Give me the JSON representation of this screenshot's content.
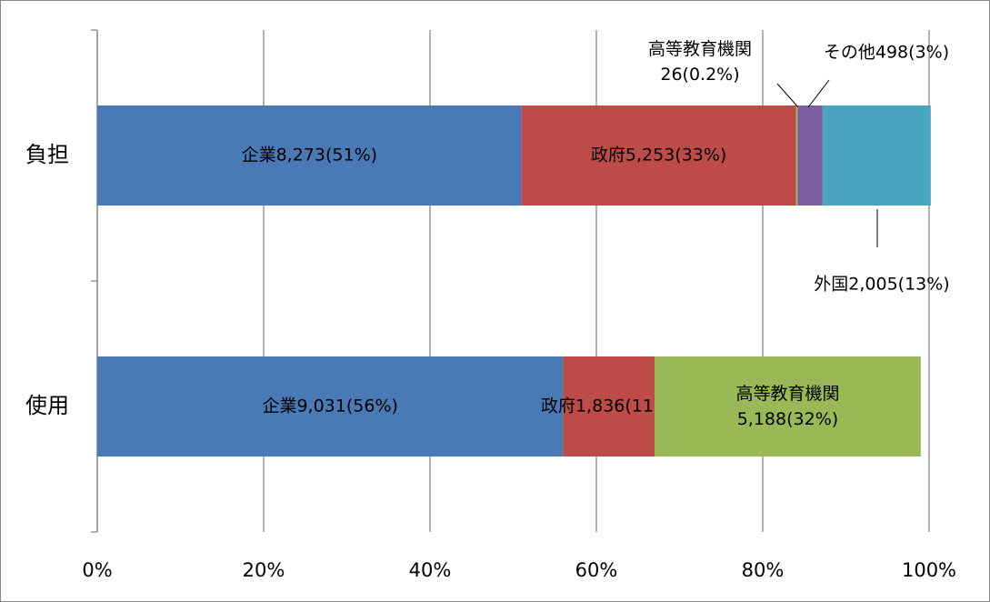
{
  "chart_data": {
    "type": "stacked_barh_percent",
    "categories": [
      "負担",
      "使用"
    ],
    "series": [
      {
        "name": "企業",
        "color": "#4a7ab5",
        "values": [
          51,
          56
        ],
        "value_labels": [
          "企業8,273(51%)",
          "企業9,031(56%)"
        ]
      },
      {
        "name": "政府",
        "color": "#bd4b48",
        "values": [
          33,
          11
        ],
        "value_labels": [
          "政府5,253(33%)",
          "政府1,836(11%)"
        ]
      },
      {
        "name": "高等教育機関",
        "color": "#98b955",
        "values": [
          0.2,
          32
        ],
        "value_labels": [
          "高等教育機関\n26(0.2%)",
          "高等教育機関\n5,188(32%)"
        ]
      },
      {
        "name": "その他",
        "color": "#7d5fa0",
        "values": [
          3,
          null
        ],
        "value_labels": [
          "その他498(3%)",
          null
        ]
      },
      {
        "name": "外国",
        "color": "#4aa6c0",
        "values": [
          13,
          null
        ],
        "value_labels": [
          "外国2,005(13%)",
          null
        ]
      }
    ],
    "xlim": [
      0,
      100
    ],
    "xticks": [
      {
        "value": 0,
        "label": "0%"
      },
      {
        "value": 20,
        "label": "20%"
      },
      {
        "value": 40,
        "label": "40%"
      },
      {
        "value": 60,
        "label": "60%"
      },
      {
        "value": 80,
        "label": "80%"
      },
      {
        "value": 100,
        "label": "100%"
      }
    ],
    "grid": true
  }
}
